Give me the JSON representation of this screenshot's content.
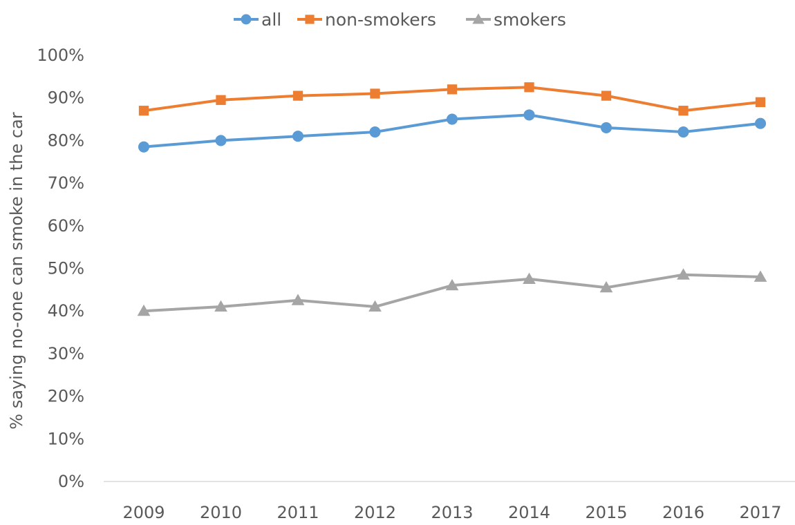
{
  "chart_data": {
    "type": "line",
    "title": "",
    "xlabel": "",
    "ylabel": "% saying no-one can smoke in the car",
    "categories": [
      "2009",
      "2010",
      "2011",
      "2012",
      "2013",
      "2014",
      "2015",
      "2016",
      "2017"
    ],
    "ylim": [
      0,
      100
    ],
    "y_ticks": [
      "0%",
      "10%",
      "20%",
      "30%",
      "40%",
      "50%",
      "60%",
      "70%",
      "80%",
      "90%",
      "100%"
    ],
    "y_unit": "%",
    "grid": false,
    "legend_position": "top",
    "series": [
      {
        "name": "all",
        "color": "#5B9BD5",
        "marker": "circle",
        "values": [
          78.5,
          80,
          81,
          82,
          85,
          86,
          83,
          82,
          84
        ]
      },
      {
        "name": "non-smokers",
        "color": "#ED7D31",
        "marker": "square",
        "values": [
          87,
          89.5,
          90.5,
          91,
          92,
          92.5,
          90.5,
          87,
          89
        ]
      },
      {
        "name": "smokers",
        "color": "#A5A5A5",
        "marker": "triangle",
        "values": [
          40,
          41,
          42.5,
          41,
          46,
          47.5,
          45.5,
          48.5,
          48
        ]
      }
    ]
  }
}
